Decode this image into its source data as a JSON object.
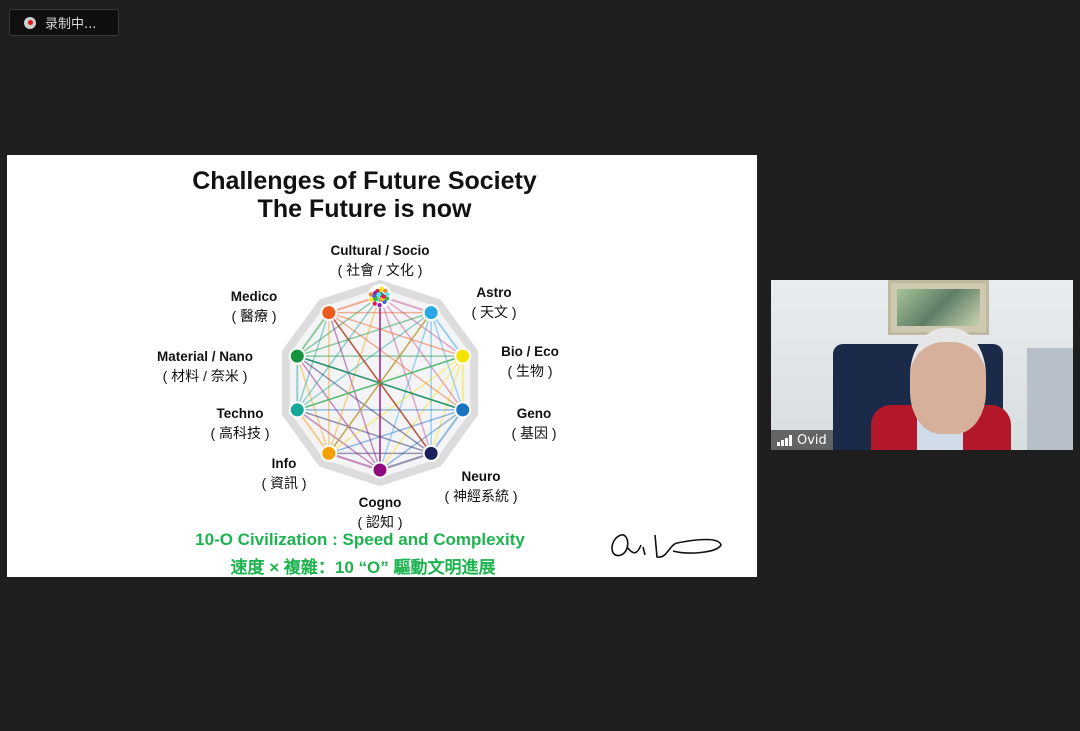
{
  "recording": {
    "label": "录制中..."
  },
  "slide": {
    "title_line1": "Challenges of Future Society",
    "title_line2": "The Future is now",
    "nodes": [
      {
        "en": "Cultural  /  Socio",
        "zh": "( 社會 / 文化 )",
        "color": "#multicolor"
      },
      {
        "en": "Astro",
        "zh": "( 天文 )",
        "color": "#2aa8e6"
      },
      {
        "en": "Bio  /  Eco",
        "zh": "( 生物 )",
        "color": "#f5e400"
      },
      {
        "en": "Geno",
        "zh": "( 基因 )",
        "color": "#1a73c0"
      },
      {
        "en": "Neuro",
        "zh": "( 神經系統 )",
        "color": "#1a1f5e"
      },
      {
        "en": "Cogno",
        "zh": "( 認知 )",
        "color": "#8e0b7d"
      },
      {
        "en": "Info",
        "zh": "( 資訊 )",
        "color": "#f5a000"
      },
      {
        "en": "Techno",
        "zh": "( 高科技 )",
        "color": "#16a69a"
      },
      {
        "en": "Material  /  Nano",
        "zh": "( 材料 / 奈米 )",
        "color": "#14943c"
      },
      {
        "en": "Medico",
        "zh": "( 醫療 )",
        "color": "#ec5a1c"
      }
    ],
    "subtitle_en": "10-O Civilization : Speed and Complexity",
    "subtitle_zh": "速度 × 複雜：10 “O” 驅動文明進展",
    "signature": "Ovid"
  },
  "video": {
    "participant_name": "Ovid"
  }
}
